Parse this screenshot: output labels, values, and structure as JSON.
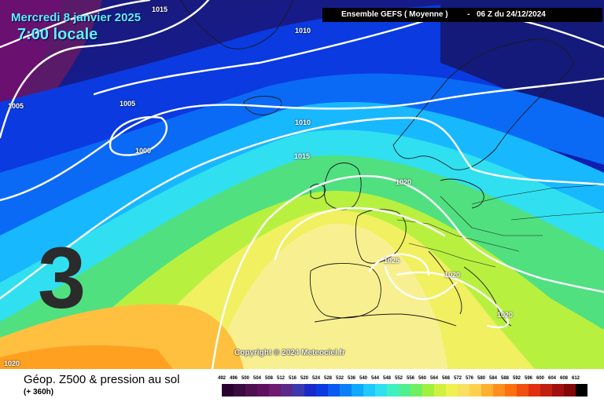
{
  "header": {
    "date": "Mercredi 8 janvier 2025",
    "local_time": "7:00 locale",
    "run_title": "Ensemble GEFS  ( Moyenne )",
    "run_separator": "-",
    "run_info": "06 Z du 24/12/2024"
  },
  "forecast_number": "3",
  "copyright": "Copyright © 2024 Meteociel.fr",
  "footer": {
    "title": "Géop. Z500 & pression au sol",
    "lead_time": "(+ 360h)"
  },
  "isobar_labels": [
    "1015",
    "1010",
    "1005",
    "1005",
    "1000",
    "1010",
    "1015",
    "1020",
    "1025",
    "1020",
    "1020",
    "1020"
  ],
  "scale": {
    "ticks": [
      "492",
      "496",
      "500",
      "504",
      "508",
      "512",
      "516",
      "520",
      "524",
      "528",
      "532",
      "536",
      "540",
      "544",
      "548",
      "552",
      "556",
      "560",
      "564",
      "568",
      "572",
      "576",
      "580",
      "584",
      "588",
      "592",
      "596",
      "600",
      "604",
      "608",
      "612"
    ],
    "colors": [
      "#2a0030",
      "#3b0a40",
      "#4f1050",
      "#601060",
      "#701a70",
      "#5a2a8a",
      "#3a3ab0",
      "#1a2ac8",
      "#0a3ae0",
      "#0a5af0",
      "#0a80f8",
      "#10a8ff",
      "#20c8ff",
      "#30e0f0",
      "#40f0c0",
      "#50f090",
      "#70f060",
      "#a0f040",
      "#d0f040",
      "#f0f050",
      "#f8e060",
      "#ffd050",
      "#ffb030",
      "#ff9020",
      "#ff7010",
      "#f05010",
      "#e03010",
      "#c02010",
      "#a01010",
      "#800808",
      "#000000"
    ]
  }
}
